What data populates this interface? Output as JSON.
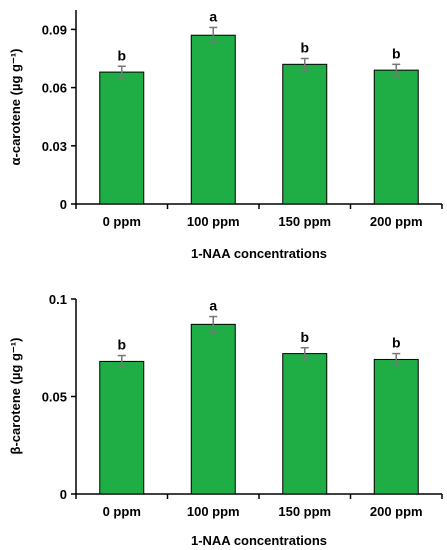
{
  "chart_data": [
    {
      "type": "bar",
      "title": "",
      "categories": [
        "0 ppm",
        "100 ppm",
        "150 ppm",
        "200 ppm"
      ],
      "values": [
        0.068,
        0.087,
        0.072,
        0.069
      ],
      "errors": [
        0.003,
        0.004,
        0.003,
        0.003
      ],
      "significance": [
        "b",
        "a",
        "b",
        "b"
      ],
      "xlabel": "1-NAA concentrations",
      "ylabel": "α-carotene (µg g⁻¹)",
      "ylim": [
        0,
        0.1
      ],
      "yticks": [
        0,
        0.03,
        0.06,
        0.09
      ],
      "ytick_labels": [
        "0",
        "0.03",
        "0.06",
        "0.09"
      ],
      "bar_color": "#1fad45",
      "error_color": "#777777",
      "grid": false
    },
    {
      "type": "bar",
      "title": "",
      "categories": [
        "0 ppm",
        "100 ppm",
        "150 ppm",
        "200 ppm"
      ],
      "values": [
        0.068,
        0.087,
        0.072,
        0.069
      ],
      "errors": [
        0.003,
        0.004,
        0.003,
        0.003
      ],
      "significance": [
        "b",
        "a",
        "b",
        "b"
      ],
      "xlabel": "1-NAA concentrations",
      "ylabel": "β-carotene (µg g⁻¹)",
      "ylim": [
        0,
        0.1
      ],
      "yticks": [
        0,
        0.05,
        0.1
      ],
      "ytick_labels": [
        "0",
        "0.05",
        "0.1"
      ],
      "bar_color": "#1fad45",
      "error_color": "#777777",
      "grid": false
    }
  ]
}
